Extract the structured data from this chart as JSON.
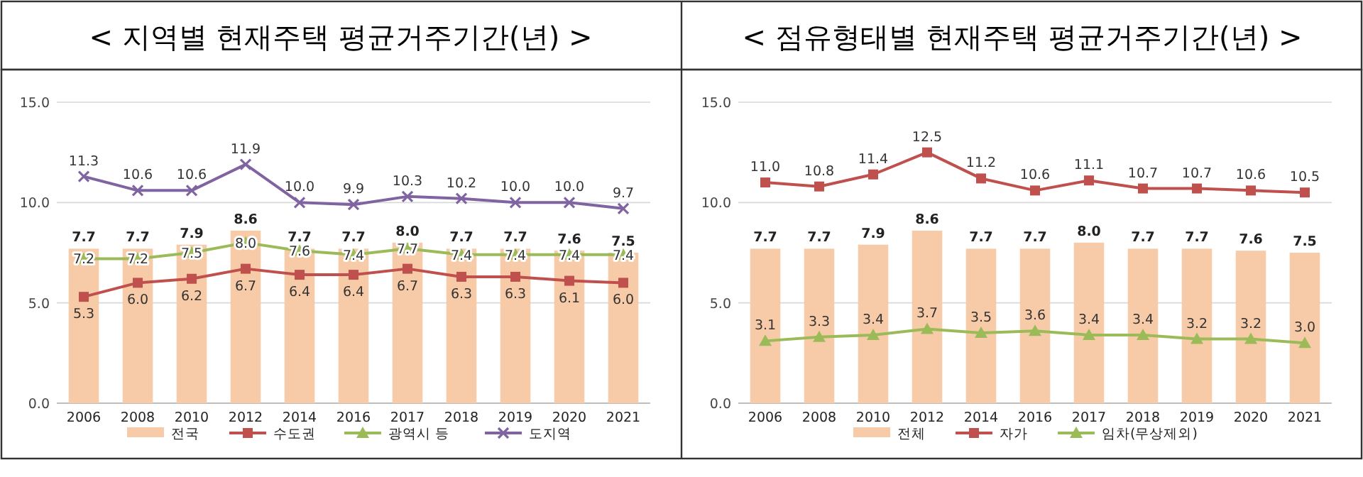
{
  "chart_data": [
    {
      "type": "bar",
      "title": "< 지역별 현재주택 평균거주기간(년) >",
      "categories": [
        "2006",
        "2008",
        "2010",
        "2012",
        "2014",
        "2016",
        "2017",
        "2018",
        "2019",
        "2020",
        "2021"
      ],
      "series": [
        {
          "name": "전국",
          "color": "#f8cba8",
          "values": [
            7.7,
            7.7,
            7.9,
            8.6,
            7.7,
            7.7,
            8.0,
            7.7,
            7.7,
            7.6,
            7.5
          ],
          "value_labels": [
            "7.7",
            "7.7",
            "7.9",
            "8.6",
            "7.7",
            "7.7",
            "8.0",
            "7.7",
            "7.7",
            "7.6",
            "7.5"
          ]
        },
        {
          "name": "수도권",
          "type": "line",
          "color": "#c0504d",
          "marker": "square",
          "values": [
            5.3,
            6.0,
            6.2,
            6.7,
            6.4,
            6.4,
            6.7,
            6.3,
            6.3,
            6.1,
            6.0
          ],
          "value_labels": [
            "5.3",
            "6.0",
            "6.2",
            "6.7",
            "6.4",
            "6.4",
            "6.7",
            "6.3",
            "6.3",
            "6.1",
            "6.0"
          ]
        },
        {
          "name": "광역시 등",
          "type": "line",
          "color": "#9bbb59",
          "marker": "triangle",
          "values": [
            7.2,
            7.2,
            7.5,
            8.0,
            7.6,
            7.4,
            7.7,
            7.4,
            7.4,
            7.4,
            7.4
          ],
          "value_labels": [
            "7.2",
            "7.2",
            "7.5",
            "8.0",
            "7.6",
            "7.4",
            "7.7",
            "7.4",
            "7.4",
            "7.4",
            "7.4"
          ]
        },
        {
          "name": "도지역",
          "type": "line",
          "color": "#8064a2",
          "marker": "cross",
          "values": [
            11.3,
            10.6,
            10.6,
            11.9,
            10.0,
            9.9,
            10.3,
            10.2,
            10.0,
            10.0,
            9.7
          ],
          "value_labels": [
            "11.3",
            "10.6",
            "10.6",
            "11.9",
            "10.0",
            "9.9",
            "10.3",
            "10.2",
            "10.0",
            "10.0",
            "9.7"
          ]
        }
      ],
      "ylim": [
        0,
        15
      ],
      "yticks": [
        {
          "value": 0,
          "label": "0.0"
        },
        {
          "value": 5,
          "label": "5.0"
        },
        {
          "value": 10,
          "label": "10.0"
        },
        {
          "value": 15,
          "label": "15.0"
        }
      ],
      "grid": "y",
      "legend": "bottom"
    },
    {
      "type": "bar",
      "title": "< 점유형태별 현재주택 평균거주기간(년) >",
      "categories": [
        "2006",
        "2008",
        "2010",
        "2012",
        "2014",
        "2016",
        "2017",
        "2018",
        "2019",
        "2020",
        "2021"
      ],
      "series": [
        {
          "name": "전체",
          "color": "#f8cba8",
          "values": [
            7.7,
            7.7,
            7.9,
            8.6,
            7.7,
            7.7,
            8.0,
            7.7,
            7.7,
            7.6,
            7.5
          ],
          "value_labels": [
            "7.7",
            "7.7",
            "7.9",
            "8.6",
            "7.7",
            "7.7",
            "8.0",
            "7.7",
            "7.7",
            "7.6",
            "7.5"
          ]
        },
        {
          "name": "자가",
          "type": "line",
          "color": "#c0504d",
          "marker": "square",
          "values": [
            11.0,
            10.8,
            11.4,
            12.5,
            11.2,
            10.6,
            11.1,
            10.7,
            10.7,
            10.6,
            10.5
          ],
          "value_labels": [
            "11.0",
            "10.8",
            "11.4",
            "12.5",
            "11.2",
            "10.6",
            "11.1",
            "10.7",
            "10.7",
            "10.6",
            "10.5"
          ]
        },
        {
          "name": "임차(무상제외)",
          "type": "line",
          "color": "#9bbb59",
          "marker": "triangle",
          "values": [
            3.1,
            3.3,
            3.4,
            3.7,
            3.5,
            3.6,
            3.4,
            3.4,
            3.2,
            3.2,
            3.0
          ],
          "value_labels": [
            "3.1",
            "3.3",
            "3.4",
            "3.7",
            "3.5",
            "3.6",
            "3.4",
            "3.4",
            "3.2",
            "3.2",
            "3.0"
          ]
        }
      ],
      "ylim": [
        0,
        15
      ],
      "yticks": [
        {
          "value": 0,
          "label": "0.0"
        },
        {
          "value": 5,
          "label": "5.0"
        },
        {
          "value": 10,
          "label": "10.0"
        },
        {
          "value": 15,
          "label": "15.0"
        }
      ],
      "grid": "y",
      "legend": "bottom"
    }
  ]
}
